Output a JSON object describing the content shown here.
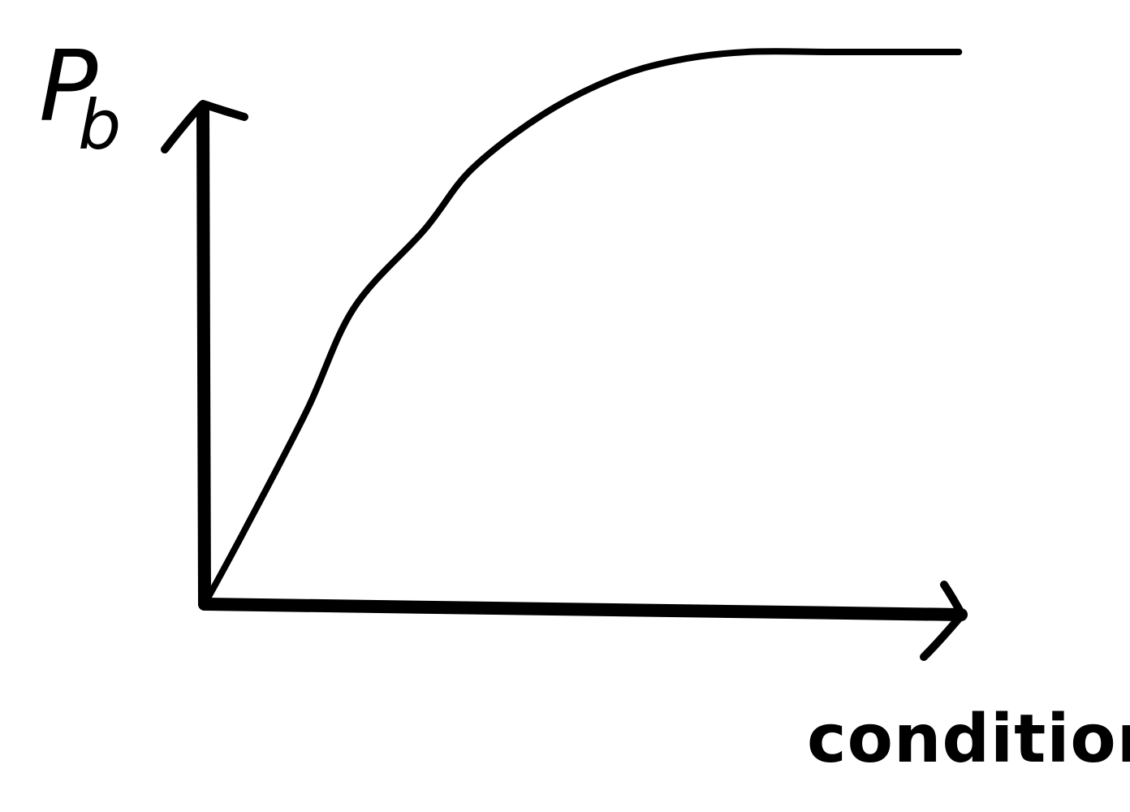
{
  "chart_data": {
    "type": "line",
    "title": "",
    "ylabel": "P",
    "ylabel_subscript": "b",
    "xlabel": "condition",
    "series": [
      {
        "values": [
          {
            "x": 0.0,
            "y": 0.0
          },
          {
            "x": 0.05,
            "y": 0.12
          },
          {
            "x": 0.13,
            "y": 0.32
          },
          {
            "x": 0.19,
            "y": 0.49
          },
          {
            "x": 0.28,
            "y": 0.62
          },
          {
            "x": 0.34,
            "y": 0.72
          },
          {
            "x": 0.43,
            "y": 0.81
          },
          {
            "x": 0.52,
            "y": 0.87
          },
          {
            "x": 0.6,
            "y": 0.9
          },
          {
            "x": 0.69,
            "y": 0.914
          },
          {
            "x": 0.8,
            "y": 0.914
          },
          {
            "x": 0.91,
            "y": 0.914
          },
          {
            "x": 0.96,
            "y": 0.914
          }
        ]
      }
    ],
    "xlim": [
      0,
      1
    ],
    "ylim": [
      0,
      1
    ],
    "grid": false,
    "legend": "none",
    "color": "#000000"
  }
}
